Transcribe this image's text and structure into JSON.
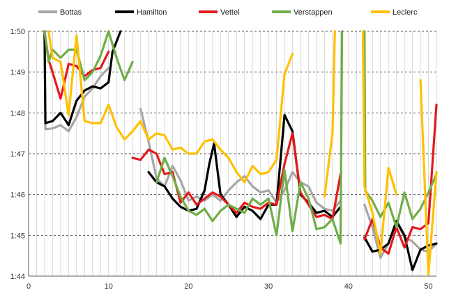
{
  "chart_data": {
    "type": "line",
    "title": "",
    "xlabel": "",
    "ylabel": "",
    "xlim": [
      0,
      51
    ],
    "ylim": [
      104,
      110
    ],
    "grid": true,
    "legend_position": "top",
    "x_ticks": [
      0,
      10,
      20,
      30,
      40,
      50
    ],
    "x_tick_labels": [
      "0",
      "10",
      "20",
      "30",
      "40",
      "50"
    ],
    "y_ticks": [
      104,
      105,
      106,
      107,
      108,
      109,
      110
    ],
    "y_tick_labels": [
      "1:44",
      "1:45",
      "1:46",
      "1:47",
      "1:48",
      "1:49",
      "1:50"
    ],
    "series": [
      {
        "name": "Bottas",
        "color": "#a6a6a6",
        "points": [
          [
            2,
            110
          ],
          [
            2.1,
            107.6
          ],
          [
            3,
            107.62
          ],
          [
            4,
            107.7
          ],
          [
            5,
            107.55
          ],
          [
            6,
            107.9
          ],
          [
            7,
            108.4
          ],
          [
            8,
            108.6
          ],
          [
            9,
            108.9
          ],
          [
            10,
            109.1
          ],
          null,
          [
            14,
            108.1
          ],
          [
            15,
            107.3
          ],
          [
            16,
            106.4
          ],
          [
            17,
            106.2
          ],
          [
            18,
            106.7
          ],
          [
            19,
            106.35
          ],
          [
            20,
            105.85
          ],
          [
            21,
            105.95
          ],
          [
            22,
            105.85
          ],
          [
            23,
            106.0
          ],
          [
            24,
            105.85
          ],
          [
            25,
            106.1
          ],
          [
            26,
            106.3
          ],
          [
            27,
            106.45
          ],
          [
            28,
            106.2
          ],
          [
            29,
            106.05
          ],
          [
            30,
            106.1
          ],
          [
            31,
            105.8
          ],
          [
            32,
            106.1
          ],
          [
            33,
            106.55
          ],
          [
            34,
            106.3
          ],
          [
            35,
            106.2
          ],
          [
            36,
            105.8
          ],
          [
            37,
            105.65
          ],
          [
            38,
            105.6
          ],
          [
            39,
            105.85
          ],
          null,
          [
            42,
            105.75
          ],
          [
            43,
            105.2
          ],
          [
            44,
            104.45
          ],
          [
            45,
            104.8
          ],
          [
            46,
            105.35
          ],
          [
            47,
            104.95
          ],
          [
            48,
            104.85
          ],
          [
            49,
            104.65
          ],
          [
            50,
            104.6
          ],
          [
            51,
            104.8
          ]
        ]
      },
      {
        "name": "Hamilton",
        "color": "#000000",
        "points": [
          [
            2,
            110
          ],
          [
            2.1,
            107.75
          ],
          [
            3,
            107.8
          ],
          [
            4,
            108.0
          ],
          [
            5,
            107.7
          ],
          [
            6,
            108.3
          ],
          [
            7,
            108.55
          ],
          [
            8,
            108.65
          ],
          [
            9,
            108.6
          ],
          [
            10,
            108.75
          ],
          [
            10.5,
            109.5
          ],
          [
            11.5,
            110
          ],
          null,
          [
            15,
            106.55
          ],
          [
            16,
            106.3
          ],
          [
            17,
            106.2
          ],
          [
            18,
            105.9
          ],
          [
            19,
            105.7
          ],
          [
            20,
            105.6
          ],
          [
            21,
            105.65
          ],
          [
            22,
            106.1
          ],
          [
            22.6,
            106.75
          ],
          [
            23.2,
            107.25
          ],
          [
            24,
            106.0
          ],
          [
            25,
            105.75
          ],
          [
            26,
            105.45
          ],
          [
            27,
            105.7
          ],
          [
            28,
            105.6
          ],
          [
            29,
            105.4
          ],
          [
            30,
            105.75
          ],
          [
            31,
            105.75
          ],
          [
            32,
            107.95
          ],
          [
            33,
            107.55
          ],
          [
            34,
            106.0
          ],
          [
            35,
            105.8
          ],
          [
            36,
            105.55
          ],
          [
            37,
            105.6
          ],
          [
            38,
            105.45
          ],
          [
            39,
            105.7
          ],
          null,
          [
            42,
            104.95
          ],
          [
            43,
            104.6
          ],
          [
            44,
            104.65
          ],
          [
            45,
            104.8
          ],
          [
            46,
            105.35
          ],
          [
            47,
            105.0
          ],
          [
            48,
            104.15
          ],
          [
            49,
            104.65
          ],
          [
            50,
            104.75
          ],
          [
            51,
            104.8
          ]
        ]
      },
      {
        "name": "Vettel",
        "color": "#e31a1c",
        "points": [
          [
            2,
            110
          ],
          [
            2.5,
            109.3
          ],
          [
            3,
            109.0
          ],
          [
            4,
            108.35
          ],
          [
            5,
            109.2
          ],
          [
            6,
            109.15
          ],
          [
            7,
            108.9
          ],
          [
            8,
            109.05
          ],
          [
            9,
            109.1
          ],
          [
            10,
            109.5
          ],
          null,
          [
            13,
            106.9
          ],
          [
            14,
            106.85
          ],
          [
            15,
            107.1
          ],
          [
            16,
            107.0
          ],
          [
            17,
            106.5
          ],
          [
            18,
            106.55
          ],
          [
            19,
            105.8
          ],
          [
            20,
            106.05
          ],
          [
            21,
            105.75
          ],
          [
            22,
            105.9
          ],
          [
            23,
            106.05
          ],
          [
            24,
            105.95
          ],
          [
            25,
            105.75
          ],
          [
            26,
            105.55
          ],
          [
            27,
            105.8
          ],
          [
            28,
            105.7
          ],
          [
            29,
            105.65
          ],
          [
            30,
            105.8
          ],
          [
            31,
            105.75
          ],
          [
            32,
            106.75
          ],
          [
            33,
            107.5
          ],
          [
            34,
            106.05
          ],
          [
            35,
            105.75
          ],
          [
            36,
            105.45
          ],
          [
            37,
            105.5
          ],
          [
            38,
            105.4
          ],
          [
            39,
            106.5
          ],
          null,
          [
            42,
            104.9
          ],
          [
            43,
            105.4
          ],
          [
            44,
            104.7
          ],
          [
            45,
            104.55
          ],
          [
            46,
            105.2
          ],
          [
            47,
            104.7
          ],
          [
            48,
            105.2
          ],
          [
            49,
            105.15
          ],
          [
            50,
            105.3
          ],
          [
            51,
            108.2
          ]
        ]
      },
      {
        "name": "Verstappen",
        "color": "#70ad47",
        "points": [
          [
            2,
            110
          ],
          [
            2.5,
            109.25
          ],
          [
            3,
            109.55
          ],
          [
            4,
            109.35
          ],
          [
            5,
            109.55
          ],
          [
            6,
            109.55
          ],
          [
            7,
            108.8
          ],
          [
            8,
            109.0
          ],
          [
            9,
            109.4
          ],
          [
            10,
            110
          ],
          [
            11,
            109.35
          ],
          [
            12,
            108.8
          ],
          [
            13,
            109.25
          ],
          null,
          [
            16,
            106.3
          ],
          [
            17,
            106.9
          ],
          [
            18,
            106.45
          ],
          [
            19,
            105.95
          ],
          [
            20,
            105.6
          ],
          [
            21,
            105.5
          ],
          [
            22,
            105.65
          ],
          [
            23,
            105.35
          ],
          [
            24,
            105.6
          ],
          [
            25,
            105.75
          ],
          [
            26,
            105.65
          ],
          [
            27,
            105.55
          ],
          [
            28,
            105.9
          ],
          [
            29,
            105.75
          ],
          [
            30,
            105.9
          ],
          [
            31,
            105.0
          ],
          [
            32,
            106.6
          ],
          [
            33,
            105.1
          ],
          [
            34,
            106.3
          ],
          [
            35,
            105.9
          ],
          [
            36,
            105.15
          ],
          [
            37,
            105.2
          ],
          [
            38,
            105.4
          ],
          [
            39,
            104.8
          ],
          [
            39.2,
            110
          ],
          null,
          [
            42,
            110
          ],
          [
            42.1,
            106.1
          ],
          [
            43,
            105.85
          ],
          [
            44,
            105.45
          ],
          [
            45,
            105.8
          ],
          [
            46,
            105.2
          ],
          [
            47,
            106.05
          ],
          [
            48,
            105.4
          ],
          [
            49,
            105.65
          ],
          [
            50,
            106.05
          ],
          [
            51,
            106.5
          ]
        ]
      },
      {
        "name": "Leclerc",
        "color": "#ffc000",
        "points": [
          [
            2.5,
            110
          ],
          [
            3,
            109.35
          ],
          [
            4,
            109.25
          ],
          [
            5,
            107.95
          ],
          [
            6,
            109.9
          ],
          [
            7,
            107.8
          ],
          [
            8,
            107.75
          ],
          [
            9,
            107.75
          ],
          [
            10,
            108.2
          ],
          [
            11,
            107.65
          ],
          [
            12,
            107.35
          ],
          [
            13,
            107.55
          ],
          [
            14,
            107.8
          ],
          [
            15,
            107.35
          ],
          [
            16,
            107.5
          ],
          [
            17,
            107.45
          ],
          [
            18,
            107.1
          ],
          [
            19,
            107.15
          ],
          [
            20,
            107.0
          ],
          [
            21,
            107.0
          ],
          [
            22,
            107.3
          ],
          [
            23,
            107.35
          ],
          [
            24,
            107.1
          ],
          [
            25,
            106.9
          ],
          [
            26,
            106.55
          ],
          [
            27,
            106.3
          ],
          [
            28,
            106.7
          ],
          [
            29,
            106.5
          ],
          [
            30,
            106.55
          ],
          [
            31,
            106.85
          ],
          [
            32,
            108.95
          ],
          [
            33,
            109.45
          ],
          null,
          [
            37,
            105.95
          ],
          [
            38,
            107.5
          ],
          [
            38.3,
            110
          ],
          null,
          [
            41.8,
            110
          ],
          [
            42,
            106.2
          ],
          [
            43,
            105.55
          ],
          [
            44,
            104.55
          ],
          [
            45,
            106.65
          ],
          [
            46,
            106.0
          ],
          null,
          [
            49,
            108.8
          ],
          [
            50,
            104.05
          ],
          [
            51,
            106.55
          ]
        ]
      }
    ]
  }
}
